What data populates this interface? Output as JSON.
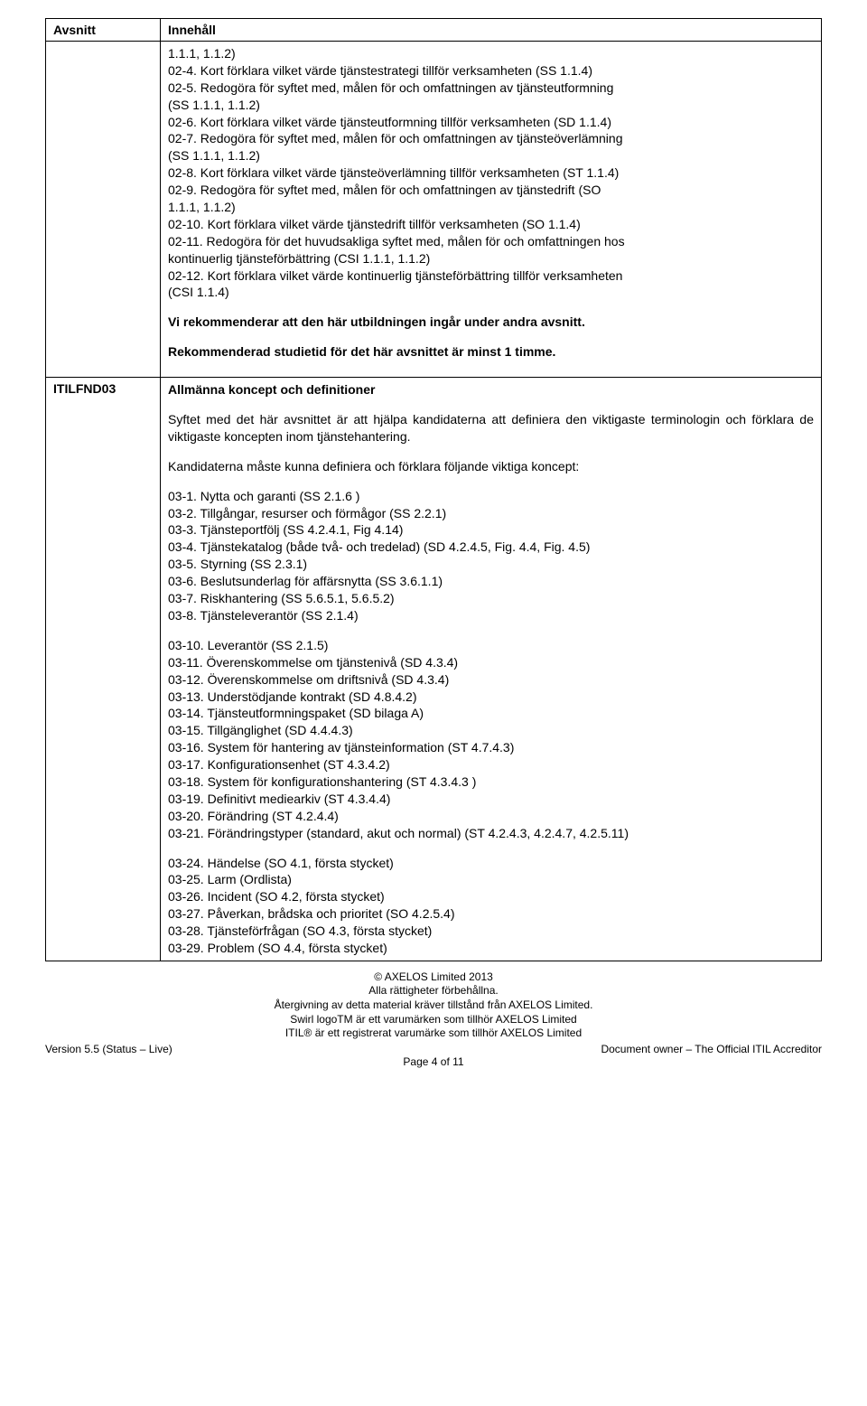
{
  "header": {
    "avsnitt": "Avsnitt",
    "innehall": "Innehåll"
  },
  "section1": {
    "pre": "1.1.1, 1.1.2)",
    "l1": "02-4. Kort förklara vilket värde tjänstestrategi tillför verksamheten (SS 1.1.4)",
    "l2a": "02-5. Redogöra för syftet med, målen för och omfattningen av tjänsteutformning",
    "l2b": "(SS 1.1.1, 1.1.2)",
    "l3": "02-6. Kort förklara vilket värde tjänsteutformning tillför verksamheten (SD 1.1.4)",
    "l4a": "02-7. Redogöra för syftet med, målen för och omfattningen av tjänsteöverlämning",
    "l4b": "(SS 1.1.1, 1.1.2)",
    "l5": "02-8. Kort förklara vilket värde tjänsteöverlämning tillför verksamheten (ST 1.1.4)",
    "l6a": "02-9. Redogöra för syftet med, målen för och omfattningen av tjänstedrift (SO",
    "l6b": "1.1.1, 1.1.2)",
    "l7": "02-10. Kort förklara vilket värde tjänstedrift tillför verksamheten (SO 1.1.4)",
    "l8a": "02-11. Redogöra för det huvudsakliga syftet med, målen för och omfattningen hos",
    "l8b": "kontinuerlig tjänsteförbättring (CSI 1.1.1, 1.1.2)",
    "l9a": "02-12. Kort förklara vilket värde kontinuerlig tjänsteförbättring tillför verksamheten",
    "l9b": "(CSI 1.1.4)",
    "rec1": "Vi rekommenderar att den här utbildningen ingår under andra avsnitt.",
    "rec2": "Rekommenderad studietid för det här avsnittet är minst 1 timme."
  },
  "section2": {
    "code": "ITILFND03",
    "title": "Allmänna koncept och definitioner",
    "intro": "Syftet med det här avsnittet är att hjälpa kandidaterna att definiera den viktigaste terminologin och förklara de viktigaste koncepten inom tjänstehantering.",
    "intro2": "Kandidaterna måste kunna definiera och förklara följande viktiga koncept:",
    "i1": "03-1. Nytta och garanti (SS 2.1.6 )",
    "i2": "03-2. Tillgångar, resurser och förmågor (SS 2.2.1)",
    "i3": "03-3. Tjänsteportfölj (SS 4.2.4.1, Fig 4.14)",
    "i4": "03-4. Tjänstekatalog (både två- och tredelad) (SD 4.2.4.5, Fig. 4.4, Fig. 4.5)",
    "i5": "03-5. Styrning (SS 2.3.1)",
    "i6": "03-6. Beslutsunderlag för affärsnytta (SS 3.6.1.1)",
    "i7": "03-7. Riskhantering (SS 5.6.5.1, 5.6.5.2)",
    "i8": "03-8. Tjänsteleverantör (SS 2.1.4)",
    "j10": "03-10. Leverantör (SS 2.1.5)",
    "j11": "03-11. Överenskommelse om tjänstenivå (SD 4.3.4)",
    "j12": "03-12. Överenskommelse om driftsnivå (SD 4.3.4)",
    "j13": "03-13. Understödjande kontrakt (SD 4.8.4.2)",
    "j14": "03-14. Tjänsteutformningspaket (SD bilaga A)",
    "j15": "03-15. Tillgänglighet (SD 4.4.4.3)",
    "j16": "03-16. System för hantering av tjänsteinformation (ST 4.7.4.3)",
    "j17": "03-17. Konfigurationsenhet (ST 4.3.4.2)",
    "j18": "03-18. System för konfigurationshantering (ST 4.3.4.3 )",
    "j19": "03-19. Definitivt mediearkiv (ST 4.3.4.4)",
    "j20": "03-20. Förändring (ST 4.2.4.4)",
    "j21": "03-21. Förändringstyper (standard, akut och normal) (ST 4.2.4.3, 4.2.4.7, 4.2.5.11)",
    "j24": "03-24. Händelse (SO 4.1, första stycket)",
    "j25": "03-25. Larm (Ordlista)",
    "j26": "03-26. Incident (SO 4.2, första stycket)",
    "j27": "03-27. Påverkan, brådska och prioritet (SO 4.2.5.4)",
    "j28": "03-28. Tjänsteförfrågan (SO 4.3, första stycket)",
    "j29": "03-29. Problem (SO 4.4, första stycket)"
  },
  "footer": {
    "f1": "© AXELOS Limited 2013",
    "f2": "Alla rättigheter förbehållna.",
    "f3": "Återgivning av detta material kräver tillstånd från AXELOS Limited.",
    "f4": "Swirl logoTM är ett varumärken som tillhör AXELOS Limited",
    "f5": "ITIL® är ett registrerat varumärke som tillhör AXELOS Limited",
    "version": "Version 5.5 (Status – Live)",
    "owner": "Document owner – The Official ITIL Accreditor",
    "page": "Page 4 of 11"
  }
}
